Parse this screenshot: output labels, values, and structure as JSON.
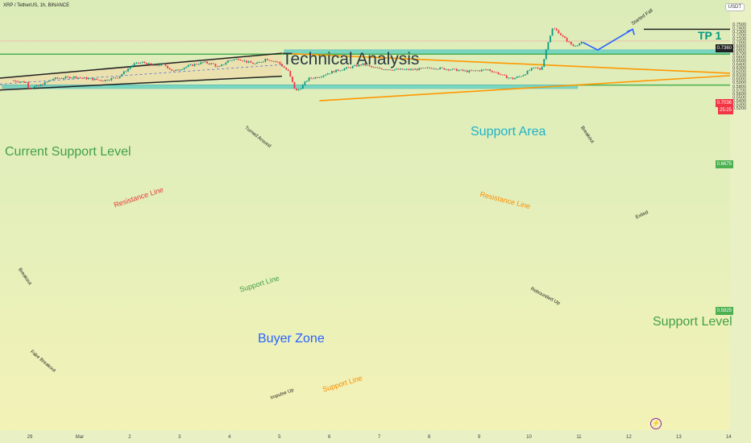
{
  "header": {
    "title": "XRP / TetherUS, 1h, BINANCE",
    "currency": "USDT"
  },
  "analysis_title": "Technical Analysis",
  "labels": {
    "tp1": "TP 1",
    "support_area": "Support Area",
    "current_support_level": "Current Support Level",
    "buyer_zone": "Buyer Zone",
    "support_level": "Support Level",
    "resistance_line_channel": "Resistance Line",
    "support_line_channel": "Support Line",
    "resistance_line_triangle": "Resistance Line",
    "support_line_triangle": "Support Line",
    "started_fall": "Started Fall",
    "turned_around": "Turned Around",
    "breakout_top": "Breakout",
    "breakout_left": "Breakout",
    "fake_breakout": "Fake Breakout",
    "impulse_up": "Impulse Up",
    "rebounded_up": "Rebounded Up",
    "exited": "Exited"
  },
  "price_tags": {
    "tp": "0.7360",
    "current": "0.7036",
    "countdown": "25:25",
    "support_area": "0.6675",
    "support_level": "0.5825"
  },
  "colors": {
    "up": "#089981",
    "down": "#f23645",
    "zone": "#4ecdc4",
    "green_line": "#4caf50",
    "orange_line": "#ff9800",
    "blue_arrow": "#2962ff",
    "channel": "#222222"
  },
  "chart_data": {
    "type": "candlestick",
    "symbol": "XRP / TetherUS",
    "timeframe": "1h",
    "exchange": "BINANCE",
    "x_ticks": [
      "29",
      "Mar",
      "2",
      "3",
      "4",
      "5",
      "6",
      "7",
      "8",
      "9",
      "10",
      "11",
      "12",
      "13",
      "14"
    ],
    "y_ticks": [
      "0.7500",
      "0.7400",
      "0.7300",
      "0.7200",
      "0.7100",
      "0.7000",
      "0.6900",
      "0.6800",
      "0.6700",
      "0.6600",
      "0.6500",
      "0.6400",
      "0.6300",
      "0.6200",
      "0.6100",
      "0.6000",
      "0.5900",
      "0.5800",
      "0.5700",
      "0.5600",
      "0.5500",
      "0.5400",
      "0.5300",
      "0.5200"
    ],
    "ylim": [
      0.515,
      0.7545
    ],
    "price_path": [
      [
        0,
        0.595
      ],
      [
        0.25,
        0.59
      ],
      [
        0.3,
        0.575
      ],
      [
        0.5,
        0.58
      ],
      [
        0.8,
        0.6
      ],
      [
        1.2,
        0.605
      ],
      [
        1.5,
        0.6
      ],
      [
        1.8,
        0.595
      ],
      [
        2.1,
        0.605
      ],
      [
        2.4,
        0.64
      ],
      [
        2.6,
        0.645
      ],
      [
        2.8,
        0.635
      ],
      [
        3.0,
        0.64
      ],
      [
        3.2,
        0.62
      ],
      [
        3.5,
        0.635
      ],
      [
        3.8,
        0.645
      ],
      [
        4.0,
        0.64
      ],
      [
        4.1,
        0.63
      ],
      [
        4.3,
        0.65
      ],
      [
        4.5,
        0.655
      ],
      [
        4.6,
        0.65
      ],
      [
        4.7,
        0.645
      ],
      [
        4.85,
        0.64
      ],
      [
        5.0,
        0.65
      ],
      [
        5.05,
        0.655
      ],
      [
        5.3,
        0.645
      ],
      [
        5.5,
        0.62
      ],
      [
        5.65,
        0.565
      ],
      [
        5.75,
        0.575
      ],
      [
        5.9,
        0.6
      ],
      [
        6.1,
        0.605
      ],
      [
        6.4,
        0.62
      ],
      [
        6.7,
        0.63
      ],
      [
        7.0,
        0.64
      ],
      [
        7.2,
        0.63
      ],
      [
        7.6,
        0.625
      ],
      [
        8.0,
        0.625
      ],
      [
        8.4,
        0.63
      ],
      [
        8.8,
        0.625
      ],
      [
        9.1,
        0.62
      ],
      [
        9.5,
        0.625
      ],
      [
        9.7,
        0.615
      ],
      [
        9.85,
        0.605
      ],
      [
        10.0,
        0.6
      ],
      [
        10.2,
        0.61
      ],
      [
        10.35,
        0.625
      ],
      [
        10.45,
        0.63
      ],
      [
        10.55,
        0.625
      ],
      [
        10.6,
        0.64
      ],
      [
        10.65,
        0.67
      ],
      [
        10.7,
        0.7
      ],
      [
        10.8,
        0.74
      ],
      [
        10.9,
        0.73
      ],
      [
        11.0,
        0.715
      ],
      [
        11.2,
        0.69
      ],
      [
        11.4,
        0.7
      ]
    ],
    "extremes": {
      "low": 0.53,
      "high": 0.7445
    },
    "levels": [
      {
        "name": "Current Support Level",
        "value": 0.6675
      },
      {
        "name": "Support Level",
        "value": 0.5825
      },
      {
        "name": "TP 1",
        "value": 0.736
      }
    ],
    "zones": [
      {
        "name": "Support Area",
        "from": 0.6675,
        "to": 0.6795
      },
      {
        "name": "Buyer Zone",
        "from": 0.573,
        "to": 0.5825
      }
    ],
    "projection": [
      [
        11.7,
        0.679
      ],
      [
        12.4,
        0.736
      ]
    ]
  }
}
